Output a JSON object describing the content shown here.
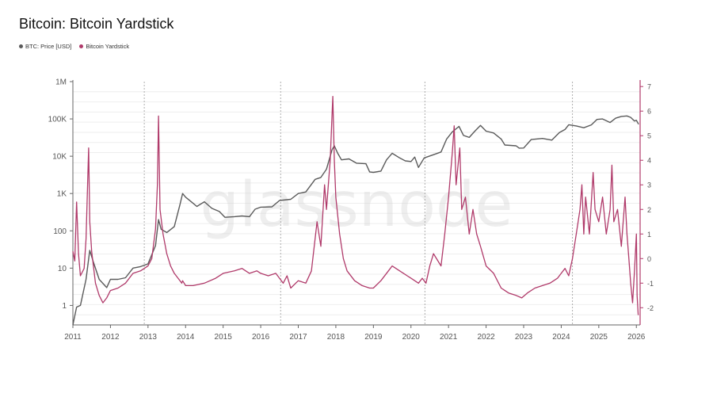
{
  "chart_data": {
    "type": "line",
    "title": "Bitcoin: Bitcoin Yardstick",
    "watermark": "glassnode",
    "legend_position": "top-left",
    "grid": true,
    "x_ticks": [
      "2011",
      "2012",
      "2013",
      "2014",
      "2015",
      "2016",
      "2017",
      "2018",
      "2019",
      "2020",
      "2021",
      "2022",
      "2023",
      "2024",
      "2025",
      "2026"
    ],
    "xlim": [
      2011.0,
      2026.1
    ],
    "halvings": [
      2012.9,
      2016.53,
      2020.37,
      2024.3
    ],
    "left_axis": {
      "scale": "log",
      "ticks": [
        "1",
        "10",
        "100",
        "1K",
        "10K",
        "100K",
        "1M"
      ],
      "ylim": [
        0.3,
        1000000
      ]
    },
    "right_axis": {
      "scale": "linear",
      "ticks": [
        "-2",
        "-1",
        "0",
        "1",
        "2",
        "3",
        "4",
        "5",
        "6",
        "7"
      ],
      "ylim": [
        -2.7,
        7.2
      ]
    },
    "series": [
      {
        "name": "BTC: Price [USD]",
        "axis": "left",
        "color": "#5a5a5a",
        "points": [
          [
            2011.0,
            0.3
          ],
          [
            2011.1,
            0.9
          ],
          [
            2011.2,
            1.0
          ],
          [
            2011.35,
            5
          ],
          [
            2011.45,
            30
          ],
          [
            2011.55,
            14
          ],
          [
            2011.7,
            5
          ],
          [
            2011.9,
            3
          ],
          [
            2012.0,
            5
          ],
          [
            2012.2,
            5
          ],
          [
            2012.4,
            5.5
          ],
          [
            2012.6,
            10
          ],
          [
            2012.8,
            11
          ],
          [
            2013.0,
            13
          ],
          [
            2013.2,
            40
          ],
          [
            2013.28,
            200
          ],
          [
            2013.35,
            110
          ],
          [
            2013.5,
            90
          ],
          [
            2013.7,
            130
          ],
          [
            2013.85,
            500
          ],
          [
            2013.92,
            1000
          ],
          [
            2014.0,
            800
          ],
          [
            2014.15,
            600
          ],
          [
            2014.3,
            450
          ],
          [
            2014.5,
            600
          ],
          [
            2014.7,
            400
          ],
          [
            2014.9,
            330
          ],
          [
            2015.05,
            230
          ],
          [
            2015.3,
            240
          ],
          [
            2015.5,
            250
          ],
          [
            2015.7,
            240
          ],
          [
            2015.85,
            380
          ],
          [
            2016.0,
            430
          ],
          [
            2016.3,
            440
          ],
          [
            2016.5,
            650
          ],
          [
            2016.8,
            700
          ],
          [
            2017.0,
            1000
          ],
          [
            2017.2,
            1100
          ],
          [
            2017.45,
            2400
          ],
          [
            2017.6,
            2700
          ],
          [
            2017.75,
            4500
          ],
          [
            2017.9,
            15000
          ],
          [
            2017.96,
            19000
          ],
          [
            2018.05,
            12000
          ],
          [
            2018.15,
            8000
          ],
          [
            2018.35,
            8500
          ],
          [
            2018.55,
            6500
          ],
          [
            2018.8,
            6300
          ],
          [
            2018.9,
            3800
          ],
          [
            2019.0,
            3700
          ],
          [
            2019.2,
            4000
          ],
          [
            2019.35,
            8000
          ],
          [
            2019.5,
            12000
          ],
          [
            2019.7,
            9000
          ],
          [
            2019.85,
            7500
          ],
          [
            2020.0,
            7200
          ],
          [
            2020.1,
            9500
          ],
          [
            2020.2,
            5000
          ],
          [
            2020.35,
            9000
          ],
          [
            2020.6,
            11000
          ],
          [
            2020.8,
            13000
          ],
          [
            2020.95,
            29000
          ],
          [
            2021.1,
            45000
          ],
          [
            2021.28,
            63000
          ],
          [
            2021.4,
            36000
          ],
          [
            2021.55,
            32000
          ],
          [
            2021.7,
            47000
          ],
          [
            2021.85,
            67000
          ],
          [
            2022.0,
            47000
          ],
          [
            2022.2,
            42000
          ],
          [
            2022.4,
            29000
          ],
          [
            2022.5,
            20000
          ],
          [
            2022.8,
            19000
          ],
          [
            2022.88,
            16500
          ],
          [
            2023.0,
            16600
          ],
          [
            2023.2,
            28000
          ],
          [
            2023.5,
            30000
          ],
          [
            2023.75,
            27000
          ],
          [
            2023.95,
            43000
          ],
          [
            2024.1,
            52000
          ],
          [
            2024.2,
            70000
          ],
          [
            2024.4,
            65000
          ],
          [
            2024.6,
            58000
          ],
          [
            2024.8,
            69000
          ],
          [
            2024.95,
            97000
          ],
          [
            2025.1,
            100000
          ],
          [
            2025.3,
            80000
          ],
          [
            2025.45,
            105000
          ],
          [
            2025.6,
            117000
          ],
          [
            2025.75,
            120000
          ],
          [
            2025.85,
            110000
          ],
          [
            2025.95,
            88000
          ],
          [
            2026.0,
            92000
          ],
          [
            2026.06,
            72000
          ]
        ]
      },
      {
        "name": "Bitcoin Yardstick",
        "axis": "right",
        "color": "#b03a6a",
        "points": [
          [
            2011.0,
            0.3
          ],
          [
            2011.05,
            -0.1
          ],
          [
            2011.1,
            2.3
          ],
          [
            2011.15,
            0.2
          ],
          [
            2011.2,
            -0.7
          ],
          [
            2011.3,
            -0.4
          ],
          [
            2011.35,
            0.8
          ],
          [
            2011.42,
            4.5
          ],
          [
            2011.45,
            1.5
          ],
          [
            2011.5,
            0.3
          ],
          [
            2011.6,
            -1.0
          ],
          [
            2011.7,
            -1.5
          ],
          [
            2011.8,
            -1.8
          ],
          [
            2011.9,
            -1.6
          ],
          [
            2012.0,
            -1.3
          ],
          [
            2012.2,
            -1.2
          ],
          [
            2012.4,
            -1.0
          ],
          [
            2012.6,
            -0.6
          ],
          [
            2012.8,
            -0.5
          ],
          [
            2013.0,
            -0.3
          ],
          [
            2013.1,
            0.0
          ],
          [
            2013.2,
            1.2
          ],
          [
            2013.25,
            3.0
          ],
          [
            2013.28,
            5.8
          ],
          [
            2013.32,
            2.0
          ],
          [
            2013.4,
            1.0
          ],
          [
            2013.5,
            0.2
          ],
          [
            2013.6,
            -0.3
          ],
          [
            2013.7,
            -0.6
          ],
          [
            2013.8,
            -0.8
          ],
          [
            2013.9,
            -1.0
          ],
          [
            2013.92,
            -0.9
          ],
          [
            2014.0,
            -1.1
          ],
          [
            2014.2,
            -1.1
          ],
          [
            2014.5,
            -1.0
          ],
          [
            2014.8,
            -0.8
          ],
          [
            2015.0,
            -0.6
          ],
          [
            2015.3,
            -0.5
          ],
          [
            2015.5,
            -0.4
          ],
          [
            2015.7,
            -0.6
          ],
          [
            2015.9,
            -0.5
          ],
          [
            2016.0,
            -0.6
          ],
          [
            2016.2,
            -0.7
          ],
          [
            2016.4,
            -0.6
          ],
          [
            2016.5,
            -0.8
          ],
          [
            2016.6,
            -1.0
          ],
          [
            2016.7,
            -0.7
          ],
          [
            2016.8,
            -1.2
          ],
          [
            2017.0,
            -0.9
          ],
          [
            2017.2,
            -1.0
          ],
          [
            2017.35,
            -0.5
          ],
          [
            2017.5,
            1.5
          ],
          [
            2017.6,
            0.5
          ],
          [
            2017.7,
            3.0
          ],
          [
            2017.75,
            2.0
          ],
          [
            2017.85,
            4.0
          ],
          [
            2017.92,
            6.6
          ],
          [
            2017.96,
            4.0
          ],
          [
            2018.0,
            2.5
          ],
          [
            2018.1,
            1.0
          ],
          [
            2018.2,
            0.0
          ],
          [
            2018.3,
            -0.5
          ],
          [
            2018.5,
            -0.9
          ],
          [
            2018.7,
            -1.1
          ],
          [
            2018.9,
            -1.2
          ],
          [
            2019.0,
            -1.2
          ],
          [
            2019.2,
            -0.9
          ],
          [
            2019.4,
            -0.5
          ],
          [
            2019.5,
            -0.3
          ],
          [
            2019.7,
            -0.5
          ],
          [
            2019.9,
            -0.7
          ],
          [
            2020.0,
            -0.8
          ],
          [
            2020.2,
            -1.0
          ],
          [
            2020.3,
            -0.8
          ],
          [
            2020.4,
            -1.0
          ],
          [
            2020.5,
            -0.3
          ],
          [
            2020.6,
            0.2
          ],
          [
            2020.8,
            -0.3
          ],
          [
            2020.9,
            1.0
          ],
          [
            2021.0,
            2.5
          ],
          [
            2021.1,
            4.3
          ],
          [
            2021.15,
            5.4
          ],
          [
            2021.2,
            3.0
          ],
          [
            2021.3,
            4.5
          ],
          [
            2021.35,
            2.0
          ],
          [
            2021.45,
            2.5
          ],
          [
            2021.55,
            1.0
          ],
          [
            2021.65,
            2.0
          ],
          [
            2021.75,
            1.0
          ],
          [
            2021.85,
            0.5
          ],
          [
            2022.0,
            -0.3
          ],
          [
            2022.2,
            -0.6
          ],
          [
            2022.4,
            -1.2
          ],
          [
            2022.6,
            -1.4
          ],
          [
            2022.8,
            -1.5
          ],
          [
            2022.95,
            -1.6
          ],
          [
            2023.1,
            -1.4
          ],
          [
            2023.3,
            -1.2
          ],
          [
            2023.5,
            -1.1
          ],
          [
            2023.7,
            -1.0
          ],
          [
            2023.9,
            -0.8
          ],
          [
            2024.0,
            -0.6
          ],
          [
            2024.1,
            -0.4
          ],
          [
            2024.2,
            -0.7
          ],
          [
            2024.3,
            0.0
          ],
          [
            2024.4,
            1.0
          ],
          [
            2024.5,
            2.0
          ],
          [
            2024.55,
            3.0
          ],
          [
            2024.6,
            1.0
          ],
          [
            2024.65,
            2.5
          ],
          [
            2024.75,
            1.0
          ],
          [
            2024.85,
            3.5
          ],
          [
            2024.9,
            2.0
          ],
          [
            2025.0,
            1.5
          ],
          [
            2025.1,
            2.5
          ],
          [
            2025.2,
            1.0
          ],
          [
            2025.3,
            2.0
          ],
          [
            2025.35,
            3.8
          ],
          [
            2025.4,
            1.5
          ],
          [
            2025.5,
            2.0
          ],
          [
            2025.6,
            0.5
          ],
          [
            2025.7,
            2.5
          ],
          [
            2025.75,
            1.0
          ],
          [
            2025.8,
            0.0
          ],
          [
            2025.85,
            -1.0
          ],
          [
            2025.9,
            -1.8
          ],
          [
            2025.95,
            -0.5
          ],
          [
            2026.0,
            1.0
          ],
          [
            2026.02,
            -1.5
          ],
          [
            2026.05,
            -2.3
          ]
        ]
      }
    ]
  }
}
